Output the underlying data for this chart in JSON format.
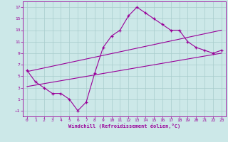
{
  "xlabel": "Windchill (Refroidissement éolien,°C)",
  "bg_color": "#cce8e8",
  "line_color": "#990099",
  "xlim": [
    -0.5,
    23.5
  ],
  "ylim": [
    -2,
    18
  ],
  "yticks": [
    -1,
    1,
    3,
    5,
    7,
    9,
    11,
    13,
    15,
    17
  ],
  "xticks": [
    0,
    1,
    2,
    3,
    4,
    5,
    6,
    7,
    8,
    9,
    10,
    11,
    12,
    13,
    14,
    15,
    16,
    17,
    18,
    19,
    20,
    21,
    22,
    23
  ],
  "curve_x": [
    0,
    1,
    2,
    3,
    4,
    5,
    6,
    7,
    8,
    9,
    10,
    11,
    12,
    13,
    14,
    15,
    16,
    17,
    18,
    19,
    20,
    21,
    22,
    23
  ],
  "curve_y": [
    6,
    4,
    3,
    2,
    2,
    1,
    -1,
    0.5,
    5.5,
    10,
    12,
    13,
    15.5,
    17,
    16,
    15,
    14,
    13,
    13,
    11,
    10,
    9.5,
    9,
    9.5
  ],
  "line1_x": [
    0,
    23
  ],
  "line1_y": [
    3.2,
    9.0
  ],
  "line2_x": [
    0,
    23
  ],
  "line2_y": [
    5.8,
    13.0
  ]
}
